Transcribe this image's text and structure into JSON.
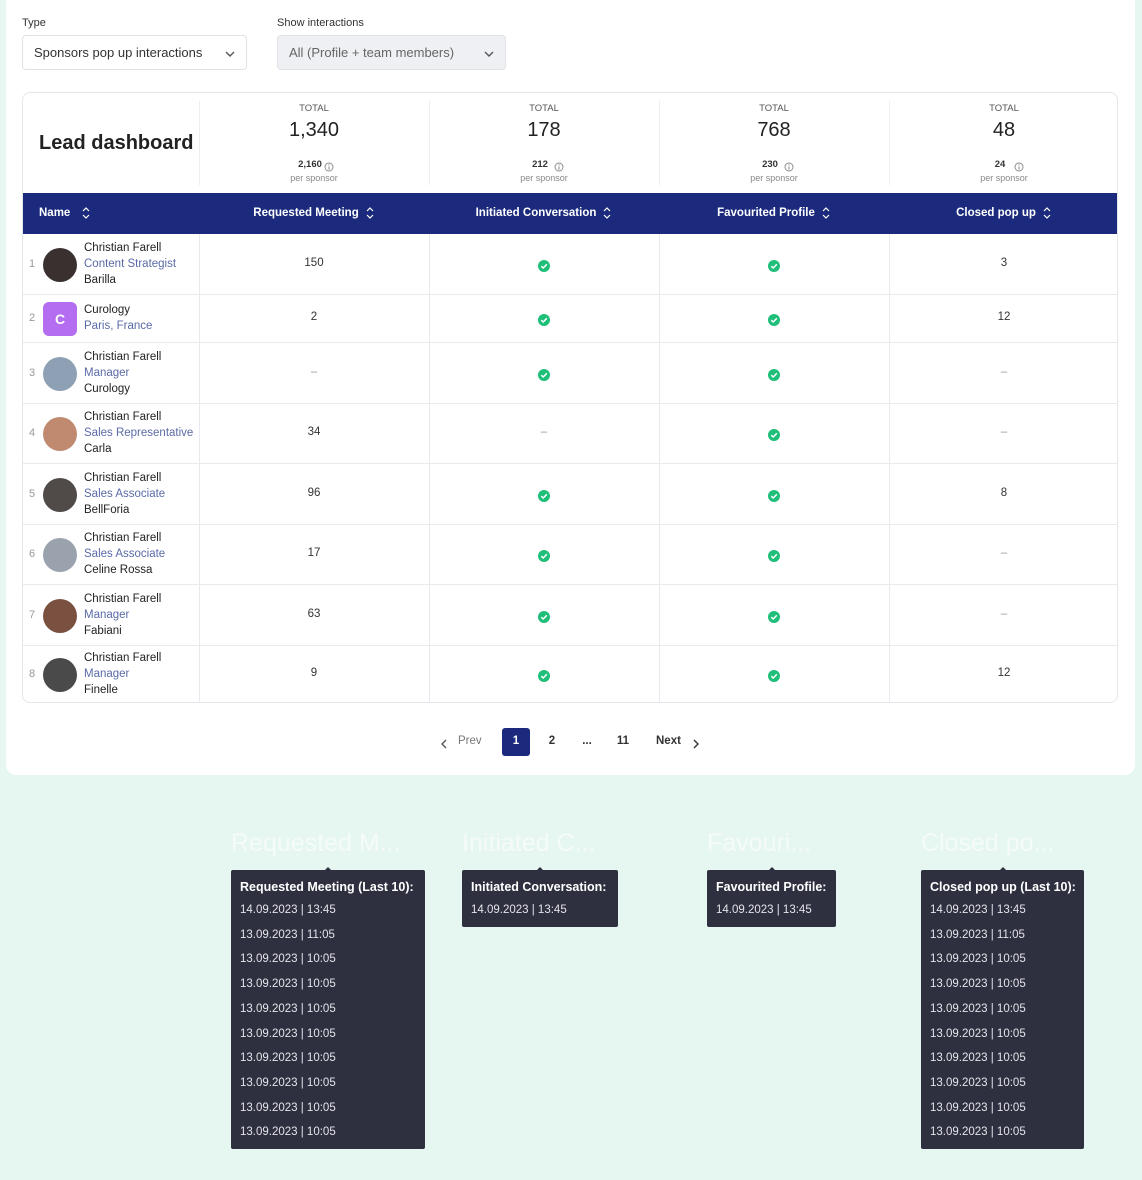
{
  "filters": [
    {
      "label": "Type",
      "value": "Sponsors pop up interactions"
    },
    {
      "label": "Show interactions",
      "value": "All (Profile + team members)"
    }
  ],
  "dashboard": {
    "title": "Lead dashboard",
    "totals": [
      {
        "label": "TOTAL",
        "value": "1,340",
        "sub_value": "2,160",
        "sub_label": "per sponsor"
      },
      {
        "label": "TOTAL",
        "value": "178",
        "sub_value": "212",
        "sub_label": "per sponsor"
      },
      {
        "label": "TOTAL",
        "value": "768",
        "sub_value": "230",
        "sub_label": "per sponsor"
      },
      {
        "label": "TOTAL",
        "value": "48",
        "sub_value": "24",
        "sub_label": "per sponsor"
      }
    ]
  },
  "table": {
    "columns": [
      "Name",
      "Requested Meeting",
      "Initiated Conversation",
      "Favourited Profile",
      "Closed pop up"
    ],
    "rows": [
      {
        "index": 1,
        "name": "Christian Farell",
        "subtitle": "Content Strategist",
        "company": "Barilla",
        "requested": 150,
        "initiated": true,
        "favourited": true,
        "closed": 3
      },
      {
        "index": 2,
        "avatar_letter": "C",
        "name": "Curology",
        "subtitle": "Paris, France",
        "requested": 2,
        "initiated": true,
        "favourited": true,
        "closed": 12
      },
      {
        "index": 3,
        "name": "Christian Farell",
        "subtitle": "Manager",
        "company": "Curology",
        "requested": "–",
        "initiated": true,
        "favourited": true,
        "closed": "–"
      },
      {
        "index": 4,
        "name": "Christian Farell",
        "subtitle": "Sales Representative",
        "company": "Carla",
        "requested": 34,
        "initiated": "–",
        "favourited": true,
        "closed": "–"
      },
      {
        "index": 5,
        "name": "Christian Farell",
        "subtitle": "Sales Associate",
        "company": "BellForia",
        "requested": 96,
        "initiated": true,
        "favourited": true,
        "closed": 8
      },
      {
        "index": 6,
        "name": "Christian Farell",
        "subtitle": "Sales Associate",
        "company": "Celine Rossa",
        "requested": 17,
        "initiated": true,
        "favourited": true,
        "closed": "–"
      },
      {
        "index": 7,
        "name": "Christian Farell",
        "subtitle": "Manager",
        "company": "Fabiani",
        "requested": 63,
        "initiated": true,
        "favourited": true,
        "closed": "–"
      },
      {
        "index": 8,
        "name": "Christian Farell",
        "subtitle": "Manager",
        "company": "Finelle",
        "requested": 9,
        "initiated": true,
        "favourited": true,
        "closed": 12
      }
    ]
  },
  "pagination": {
    "prev": "Prev",
    "pages": [
      "1",
      "2",
      "...",
      "11"
    ],
    "next": "Next"
  },
  "tooltips": [
    {
      "header": "Requested M...",
      "title": "Requested Meeting (Last 10):",
      "items": [
        "14.09.2023 | 13:45",
        "13.09.2023 | 11:05",
        "13.09.2023 | 10:05",
        "13.09.2023 | 10:05",
        "13.09.2023 | 10:05",
        "13.09.2023 | 10:05",
        "13.09.2023 | 10:05",
        "13.09.2023 | 10:05",
        "13.09.2023 | 10:05",
        "13.09.2023 | 10:05"
      ]
    },
    {
      "header": "Initiated C...",
      "title": "Initiated Conversation:",
      "items": [
        "14.09.2023 | 13:45"
      ]
    },
    {
      "header": "Favouri...",
      "title": "Favourited Profile:",
      "items": [
        "14.09.2023 | 13:45"
      ]
    },
    {
      "header": "Closed po...",
      "title": "Closed pop up (Last 10):",
      "items": [
        "14.09.2023 | 13:45",
        "13.09.2023 | 11:05",
        "13.09.2023 | 10:05",
        "13.09.2023 | 10:05",
        "13.09.2023 | 10:05",
        "13.09.2023 | 10:05",
        "13.09.2023 | 10:05",
        "13.09.2023 | 10:05",
        "13.09.2023 | 10:05",
        "13.09.2023 | 10:05"
      ]
    }
  ]
}
